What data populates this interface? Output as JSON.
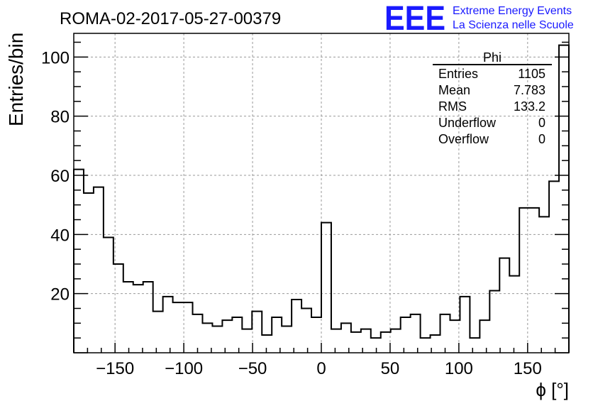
{
  "chart_data": {
    "type": "histogram",
    "title": "ROMA-02-2017-05-27-00379",
    "xlabel": "ϕ [°]",
    "ylabel": "Entries/bin",
    "xlim": [
      -180,
      180
    ],
    "ylim": [
      0,
      108
    ],
    "bin_edges_start": -180,
    "bin_width": 7.2,
    "values": [
      62,
      54,
      56,
      39,
      30,
      24,
      23,
      24,
      14,
      19,
      17,
      17,
      13,
      10,
      9,
      11,
      12,
      8,
      14,
      6,
      12,
      9,
      18,
      15,
      12,
      44,
      8,
      10,
      7,
      8,
      5,
      7,
      8,
      12,
      13,
      5,
      6,
      13,
      11,
      19,
      5,
      11,
      21,
      32,
      26,
      49,
      49,
      46,
      58,
      104
    ],
    "x_ticks": [
      {
        "v": -150,
        "label": "−150"
      },
      {
        "v": -100,
        "label": "−100"
      },
      {
        "v": -50,
        "label": "−50"
      },
      {
        "v": 0,
        "label": "0"
      },
      {
        "v": 50,
        "label": "50"
      },
      {
        "v": 100,
        "label": "100"
      },
      {
        "v": 150,
        "label": "150"
      }
    ],
    "y_ticks": [
      {
        "v": 20,
        "label": "20"
      },
      {
        "v": 40,
        "label": "40"
      },
      {
        "v": 60,
        "label": "60"
      },
      {
        "v": 80,
        "label": "80"
      },
      {
        "v": 100,
        "label": "100"
      }
    ],
    "grid": true,
    "stats_box": {
      "title": "Phi",
      "rows": [
        {
          "label": "Entries",
          "value": "1105"
        },
        {
          "label": "Mean",
          "value": "7.783"
        },
        {
          "label": "RMS",
          "value": "133.2"
        },
        {
          "label": "Underflow",
          "value": "0"
        },
        {
          "label": "Overflow",
          "value": "0"
        }
      ]
    }
  },
  "logo": {
    "text": "EEE",
    "line1": "Extreme Energy Events",
    "line2": "La Scienza nelle Scuole",
    "color": "#1a1aff"
  },
  "colors": {
    "line": "#000000",
    "grid": "#999999"
  }
}
